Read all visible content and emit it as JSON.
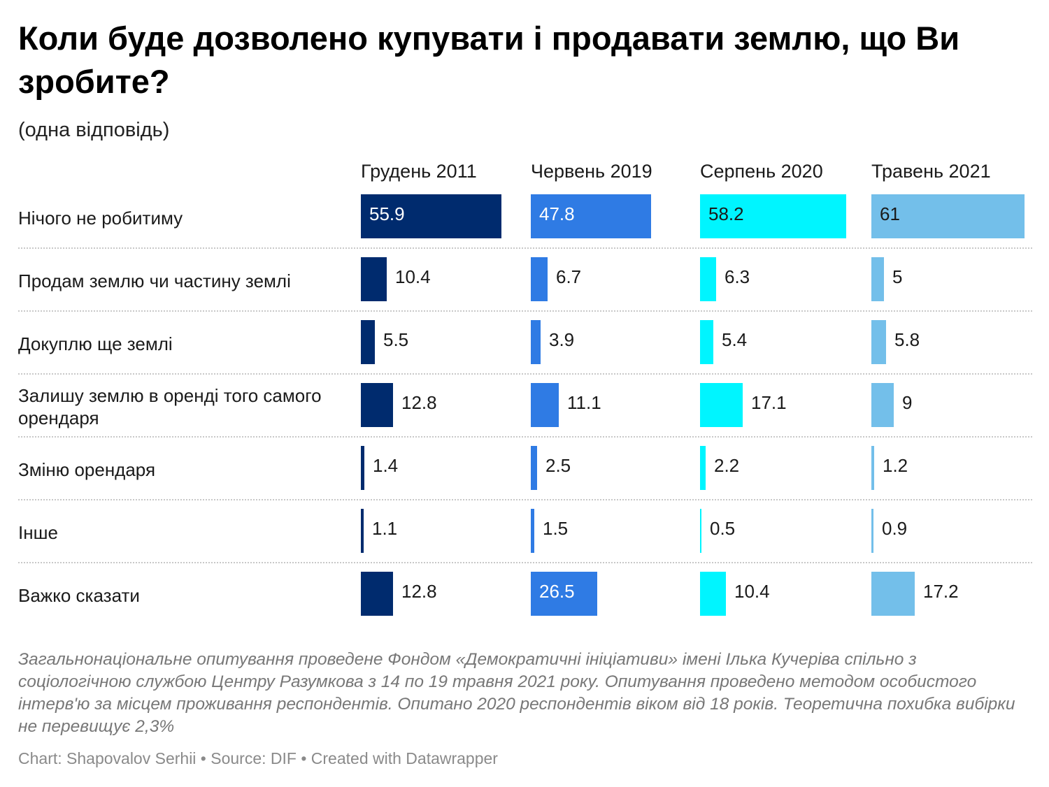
{
  "title": "Коли буде дозволено купувати і продавати землю, що Ви зробите?",
  "subtitle": "(одна відповідь)",
  "colors": {
    "Грудень 2011": "#002b6e",
    "Червень 2019": "#2f7be4",
    "Серпень 2020": "#00f5ff",
    "Травень 2021": "#73bfea"
  },
  "chart_data": {
    "type": "bar",
    "orientation": "horizontal",
    "layout": "small-multiples",
    "title": "Коли буде дозволено купувати і продавати землю, що Ви зробите?",
    "subtitle": "(одна відповідь)",
    "categories": [
      "Нічого не робитиму",
      "Продам землю чи частину землі",
      "Докуплю ще землі",
      "Залишу землю в оренді того самого орендаря",
      "Зміню орендаря",
      "Інше",
      "Важко сказати"
    ],
    "series": [
      {
        "name": "Грудень 2011",
        "values": [
          55.9,
          10.4,
          5.5,
          12.8,
          1.4,
          1.1,
          12.8
        ]
      },
      {
        "name": "Червень 2019",
        "values": [
          47.8,
          6.7,
          3.9,
          11.1,
          2.5,
          1.5,
          26.5
        ]
      },
      {
        "name": "Серпень 2020",
        "values": [
          58.2,
          6.3,
          5.4,
          17.1,
          2.2,
          0.5,
          10.4
        ]
      },
      {
        "name": "Травень 2021",
        "values": [
          61,
          5,
          5.8,
          9,
          1.2,
          0.9,
          17.2
        ]
      }
    ],
    "xlim": [
      0,
      61
    ],
    "grid": false
  },
  "notes": "Загальнонаціональне опитування проведене Фондом «Демократичні ініціативи» імені Ілька Кучеріва спільно з соціологічною службою Центру Разумкова з 14 по 19 травня 2021 року. Опитування проведено методом особистого інтерв'ю за місцем проживання респондентів. Опитано 2020 респондентів віком від 18 років. Теоретична похибка вибірки не перевищує 2,3%",
  "footer": "Chart: Shapovalov Serhii • Source: DIF • Created with Datawrapper"
}
